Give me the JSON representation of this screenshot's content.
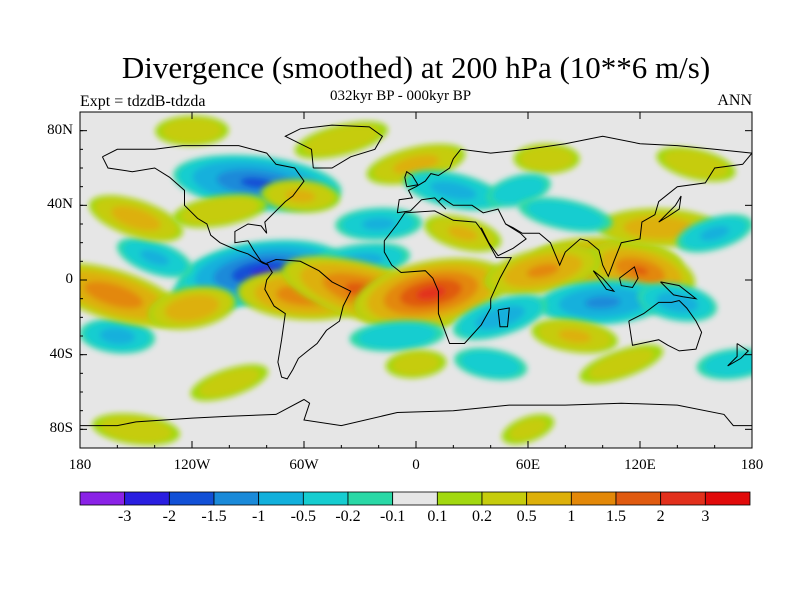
{
  "header": {
    "title": "Divergence (smoothed) at 200 hPa (10**6 m/s)",
    "experiment": "Expt = tdzdB-tdzda",
    "period": "032kyr BP - 000kyr BP",
    "season": "ANN"
  },
  "chart_data": {
    "type": "heatmap",
    "title": "Divergence (smoothed) at 200 hPa (10**6 m/s)",
    "projection": "cylindrical-equidistant",
    "lon_range": [
      -180,
      180
    ],
    "lat_range": [
      -90,
      90
    ],
    "x_ticks": [
      {
        "lon": -180,
        "label": "180"
      },
      {
        "lon": -120,
        "label": "120W"
      },
      {
        "lon": -60,
        "label": "60W"
      },
      {
        "lon": 0,
        "label": "0"
      },
      {
        "lon": 60,
        "label": "60E"
      },
      {
        "lon": 120,
        "label": "120E"
      },
      {
        "lon": 180,
        "label": "180"
      }
    ],
    "y_ticks": [
      {
        "lat": 80,
        "label": "80N"
      },
      {
        "lat": 40,
        "label": "40N"
      },
      {
        "lat": 0,
        "label": "0"
      },
      {
        "lat": -40,
        "label": "40S"
      },
      {
        "lat": -80,
        "label": "80S"
      }
    ],
    "colorbar": {
      "levels": [
        {
          "value": -3,
          "label": "-3"
        },
        {
          "value": -2,
          "label": "-2"
        },
        {
          "value": -1.5,
          "label": "-1.5"
        },
        {
          "value": -1,
          "label": "-1"
        },
        {
          "value": -0.5,
          "label": "-0.5"
        },
        {
          "value": -0.2,
          "label": "-0.2"
        },
        {
          "value": -0.1,
          "label": "-0.1"
        },
        {
          "value": 0.1,
          "label": "0.1"
        },
        {
          "value": 0.2,
          "label": "0.2"
        },
        {
          "value": 0.5,
          "label": "0.5"
        },
        {
          "value": 1,
          "label": "1"
        },
        {
          "value": 1.5,
          "label": "1.5"
        },
        {
          "value": 2,
          "label": "2"
        },
        {
          "value": 3,
          "label": "3"
        }
      ],
      "colors": [
        "#8a22e6",
        "#2a1ee0",
        "#1250d6",
        "#1a8ad9",
        "#12b0dc",
        "#16cdd0",
        "#2ad8a6",
        "#e6e6e6",
        "#a2d810",
        "#c6cc0c",
        "#ddb00a",
        "#e38808",
        "#e05a10",
        "#e2301c",
        "#e10a0a"
      ]
    },
    "features": [
      {
        "lon": -100,
        "lat": 0,
        "value": -1.8
      },
      {
        "lon": -82,
        "lat": 4,
        "value": -2.2
      },
      {
        "lon": -85,
        "lat": 52,
        "value": -1.7
      },
      {
        "lon": -140,
        "lat": 12,
        "value": -0.6
      },
      {
        "lon": -30,
        "lat": 10,
        "value": -0.7
      },
      {
        "lon": -160,
        "lat": -30,
        "value": -0.7
      },
      {
        "lon": -150,
        "lat": 33,
        "value": 0.8
      },
      {
        "lon": -105,
        "lat": 37,
        "value": 0.5
      },
      {
        "lon": -62,
        "lat": 45,
        "value": 0.6
      },
      {
        "lon": -162,
        "lat": -8,
        "value": 1.5
      },
      {
        "lon": -120,
        "lat": -15,
        "value": 1.0
      },
      {
        "lon": -60,
        "lat": -8,
        "value": 1.5
      },
      {
        "lon": -25,
        "lat": -7,
        "value": 1.9
      },
      {
        "lon": 8,
        "lat": -7,
        "value": 2.3
      },
      {
        "lon": 102,
        "lat": 9,
        "value": 1.6
      },
      {
        "lon": 120,
        "lat": 5,
        "value": 1.6
      },
      {
        "lon": 68,
        "lat": 5,
        "value": 1.2
      },
      {
        "lon": 130,
        "lat": 28,
        "value": 0.9
      },
      {
        "lon": 25,
        "lat": 25,
        "value": 0.6
      },
      {
        "lon": 0,
        "lat": 62,
        "value": 0.7
      },
      {
        "lon": 70,
        "lat": 65,
        "value": 0.5
      },
      {
        "lon": 150,
        "lat": 62,
        "value": 0.5
      },
      {
        "lon": -40,
        "lat": 75,
        "value": 0.5
      },
      {
        "lon": -120,
        "lat": 80,
        "value": 0.5
      },
      {
        "lon": 20,
        "lat": 48,
        "value": -0.7
      },
      {
        "lon": 55,
        "lat": 48,
        "value": -0.5
      },
      {
        "lon": -20,
        "lat": 30,
        "value": -0.6
      },
      {
        "lon": 80,
        "lat": 35,
        "value": -0.5
      },
      {
        "lon": 160,
        "lat": 25,
        "value": -0.6
      },
      {
        "lon": 100,
        "lat": -12,
        "value": -1.2
      },
      {
        "lon": 140,
        "lat": -12,
        "value": -0.8
      },
      {
        "lon": 45,
        "lat": -20,
        "value": -0.8
      },
      {
        "lon": -10,
        "lat": -30,
        "value": -0.5
      },
      {
        "lon": 40,
        "lat": -45,
        "value": -0.5
      },
      {
        "lon": -100,
        "lat": -55,
        "value": 0.4
      },
      {
        "lon": 0,
        "lat": -45,
        "value": 0.4
      },
      {
        "lon": 85,
        "lat": -30,
        "value": 0.6
      },
      {
        "lon": 110,
        "lat": -45,
        "value": 0.4
      },
      {
        "lon": 170,
        "lat": -45,
        "value": -0.5
      },
      {
        "lon": -150,
        "lat": -80,
        "value": 0.5
      },
      {
        "lon": 60,
        "lat": -80,
        "value": 0.3
      }
    ]
  }
}
